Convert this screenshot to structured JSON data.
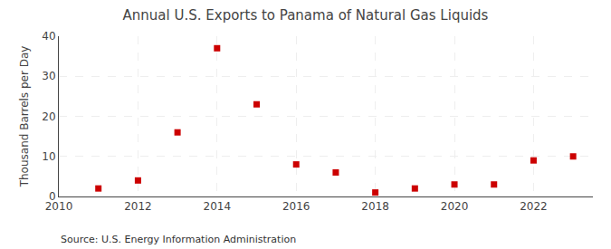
{
  "chart_data": {
    "type": "scatter",
    "title": "Annual U.S. Exports to Panama of Natural Gas Liquids",
    "ylabel": "Thousand Barrels per Day",
    "annotations": [
      "Source: U.S. Energy Information Administration"
    ],
    "x": [
      2011,
      2012,
      2013,
      2014,
      2015,
      2016,
      2017,
      2018,
      2019,
      2020,
      2021,
      2022,
      2023
    ],
    "values": [
      2,
      4,
      16,
      37,
      23,
      8,
      6,
      1,
      2,
      3,
      3,
      9,
      10
    ],
    "xlim": [
      2010,
      2023.5
    ],
    "xticks": [
      2010,
      2012,
      2014,
      2016,
      2018,
      2020,
      2022
    ],
    "ylim": [
      0,
      40
    ],
    "yticks": [
      0,
      10,
      20,
      30,
      40
    ],
    "color": "#cc0000",
    "marker": "square",
    "grid": true
  }
}
